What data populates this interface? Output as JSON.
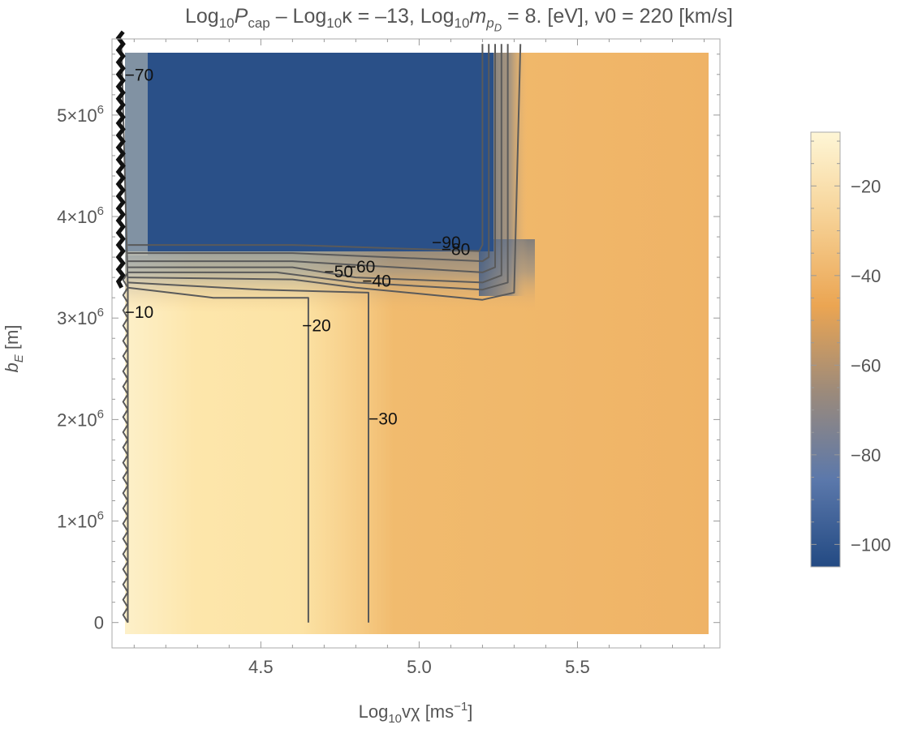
{
  "chart_data": {
    "type": "heatmap",
    "title": {
      "part1": "Log",
      "part1_sub": "10",
      "part2": "P",
      "part2_sub": "cap",
      "part3": " – Log",
      "part3_sub": "10",
      "part4": "κ = –13, Log",
      "part4_sub": "10",
      "part5": "m",
      "part5_sub": "p",
      "part5_subsub": "D",
      "part6": " = 8. [eV], v0 = 220 [km/s]"
    },
    "xlabel": {
      "pre": "Log",
      "sub": "10",
      "main": "vχ [ms",
      "sup": "−1",
      "post": "]"
    },
    "ylabel": {
      "main": "b",
      "sub": "E",
      "post": " [m]"
    },
    "xlim": [
      4.03,
      5.95
    ],
    "ylim": [
      -250000,
      5750000
    ],
    "x_ticks": [
      4.5,
      5.0,
      5.5
    ],
    "x_tick_labels": [
      "4.5",
      "5.0",
      "5.5"
    ],
    "y_ticks": [
      0,
      1000000,
      2000000,
      3000000,
      4000000,
      5000000
    ],
    "y_tick_labels": [
      {
        "base": "0",
        "exp": ""
      },
      {
        "base": "1×10",
        "exp": "6"
      },
      {
        "base": "2×10",
        "exp": "6"
      },
      {
        "base": "3×10",
        "exp": "6"
      },
      {
        "base": "4×10",
        "exp": "6"
      },
      {
        "base": "5×10",
        "exp": "6"
      }
    ],
    "colorbar": {
      "range": [
        -105,
        -8
      ],
      "ticks": [
        -20,
        -40,
        -60,
        -80,
        -100
      ],
      "tick_labels": [
        "−20",
        "−40",
        "−60",
        "−80",
        "−100"
      ]
    },
    "contours": [
      {
        "level": -10,
        "label": "−10",
        "label_at": [
          4.07,
          3000000
        ],
        "points": [
          [
            4.08,
            0
          ],
          [
            4.08,
            3300000
          ],
          [
            4.06,
            5650000
          ]
        ]
      },
      {
        "level": -20,
        "label": "−20",
        "label_at": [
          4.63,
          2870000
        ],
        "points": [
          [
            4.65,
            0
          ],
          [
            4.65,
            3200000
          ],
          [
            4.35,
            3200000
          ],
          [
            4.08,
            3300000
          ]
        ]
      },
      {
        "level": -30,
        "label": "−30",
        "label_at": [
          4.84,
          1950000
        ],
        "points": [
          [
            4.84,
            0
          ],
          [
            4.84,
            3250000
          ],
          [
            4.5,
            3280000
          ],
          [
            4.08,
            3350000
          ]
        ]
      },
      {
        "level": -40,
        "label": "−40",
        "label_at": [
          4.82,
          3310000
        ],
        "points": [
          [
            4.08,
            3400000
          ],
          [
            4.6,
            3380000
          ],
          [
            4.8,
            3300000
          ],
          [
            5.2,
            3180000
          ],
          [
            5.3,
            3250000
          ],
          [
            5.32,
            5700000
          ]
        ]
      },
      {
        "level": -50,
        "label": "−50",
        "label_at": [
          4.7,
          3400000
        ],
        "points": [
          [
            4.08,
            3450000
          ],
          [
            4.55,
            3450000
          ],
          [
            4.8,
            3350000
          ],
          [
            5.2,
            3280000
          ],
          [
            5.28,
            3350000
          ],
          [
            5.28,
            5700000
          ]
        ]
      },
      {
        "level": -60,
        "label": "−60",
        "label_at": [
          4.77,
          3450000
        ],
        "points": [
          [
            4.08,
            3500000
          ],
          [
            4.6,
            3500000
          ],
          [
            4.8,
            3400000
          ],
          [
            5.2,
            3350000
          ],
          [
            5.26,
            3420000
          ],
          [
            5.26,
            5700000
          ]
        ]
      },
      {
        "level": -70,
        "label": "−70",
        "label_at": [
          4.07,
          5340000
        ],
        "points": [
          [
            4.08,
            3560000
          ],
          [
            4.6,
            3560000
          ],
          [
            5.2,
            3450000
          ],
          [
            5.24,
            3500000
          ],
          [
            5.24,
            5700000
          ]
        ]
      },
      {
        "level": -80,
        "label": "−80",
        "label_at": [
          5.07,
          3620000
        ],
        "points": [
          [
            4.08,
            3640000
          ],
          [
            4.6,
            3640000
          ],
          [
            5.2,
            3560000
          ],
          [
            5.22,
            3600000
          ],
          [
            5.22,
            5700000
          ]
        ]
      },
      {
        "level": -90,
        "label": "−90",
        "label_at": [
          5.04,
          3690000
        ],
        "points": [
          [
            4.08,
            3720000
          ],
          [
            4.6,
            3720000
          ],
          [
            5.19,
            3660000
          ],
          [
            5.2,
            3720000
          ],
          [
            5.2,
            5700000
          ]
        ]
      }
    ],
    "colors": {
      "high": "#fdf2ca",
      "mid": "#eaa450",
      "low": "#254b83",
      "contour": "#5a5a5a"
    }
  }
}
